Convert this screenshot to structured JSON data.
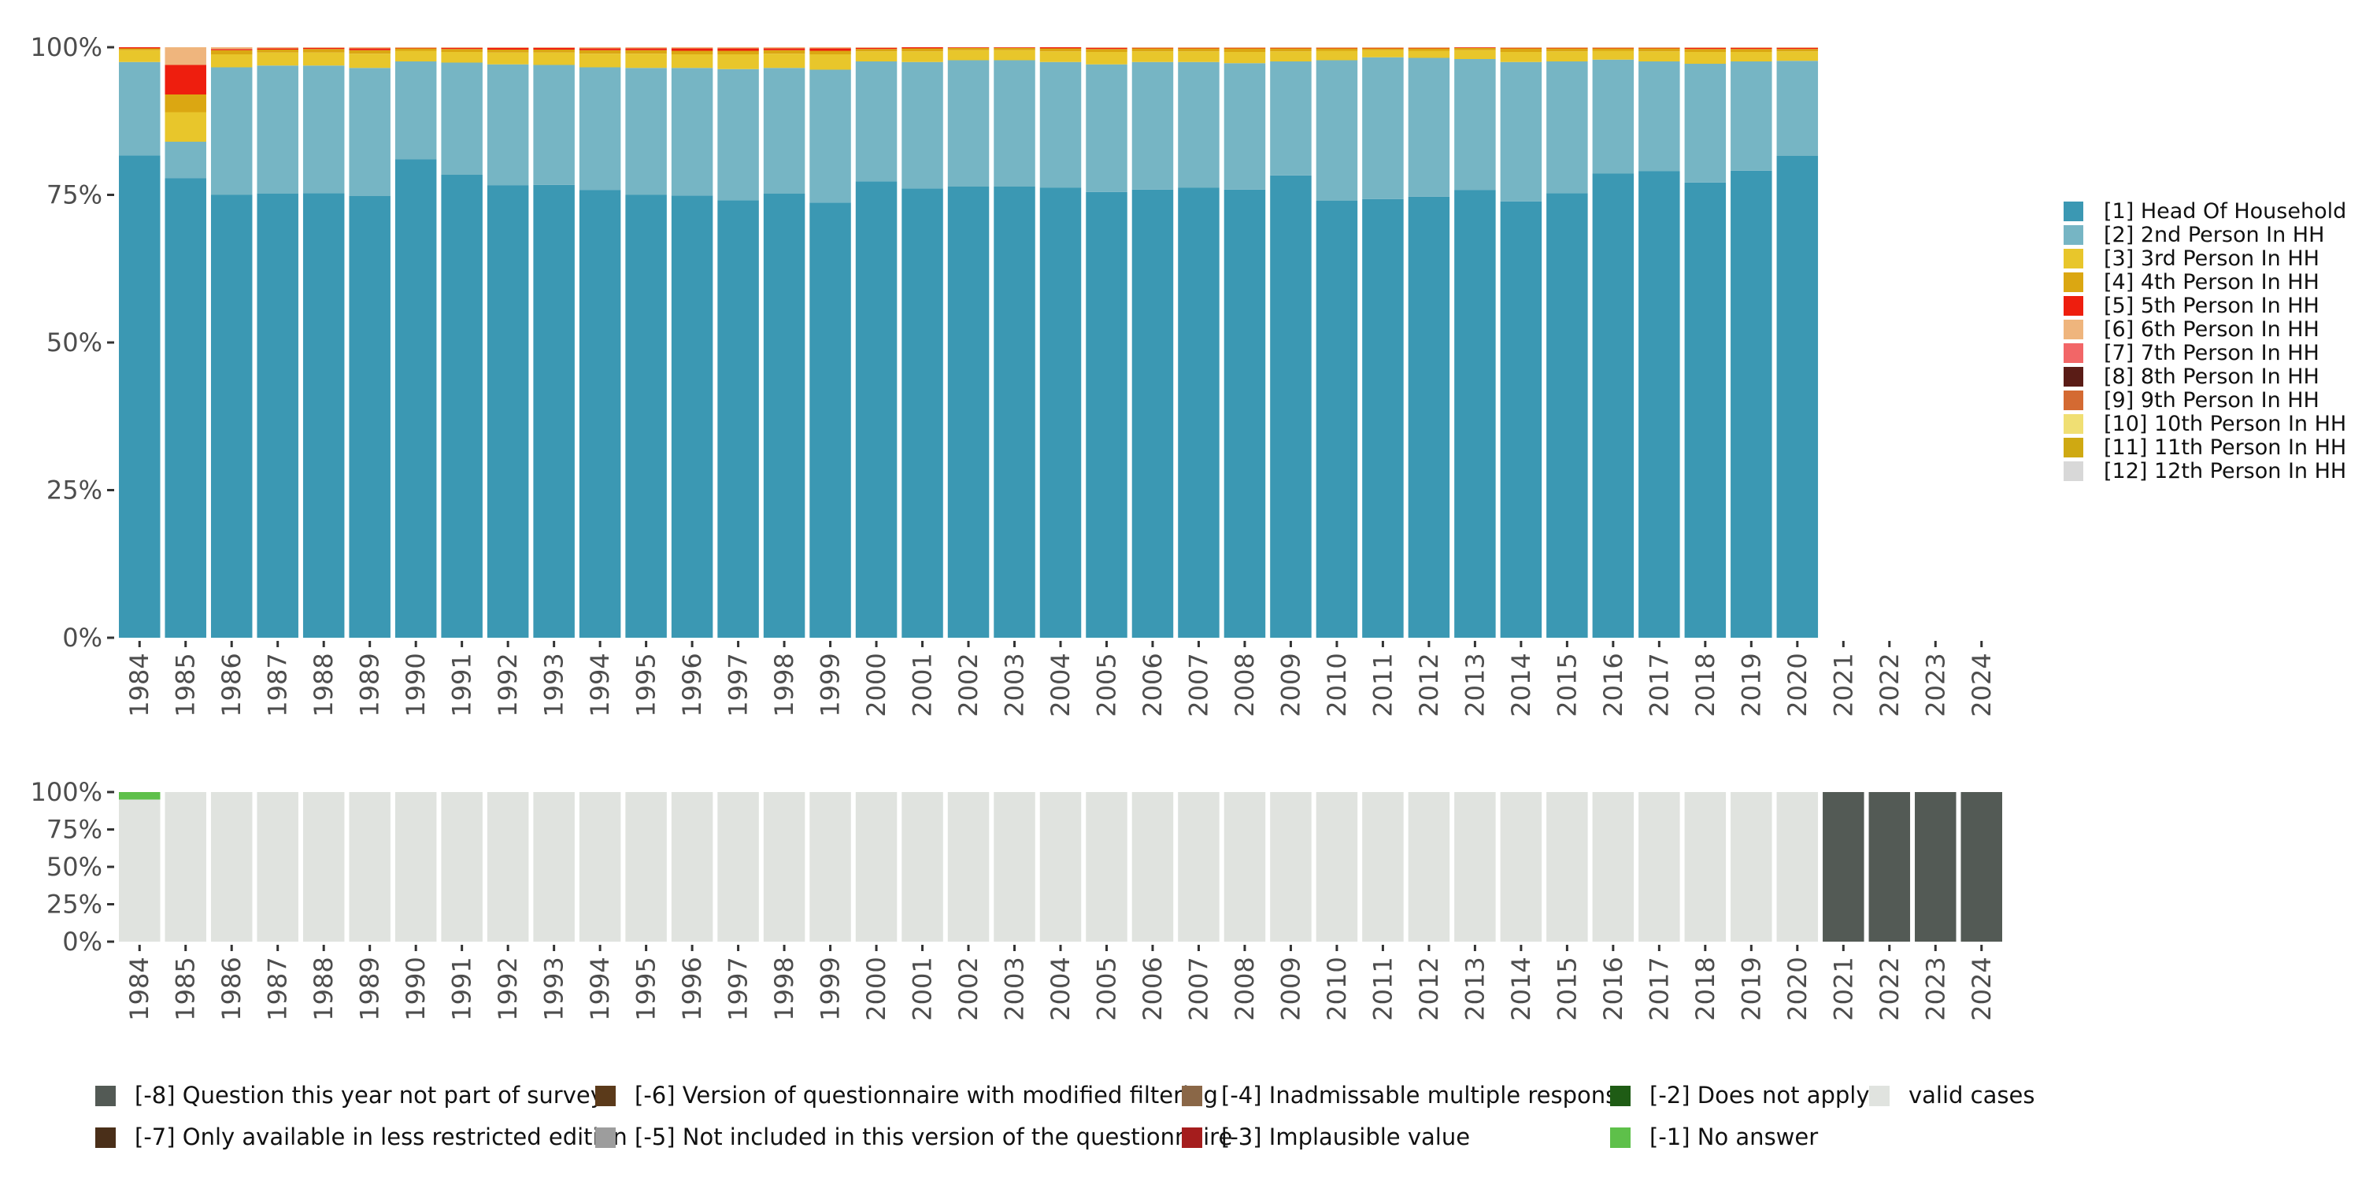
{
  "colors": {
    "series": {
      "[1] Head Of Household": "#3b98b3",
      "[2] 2nd Person In HH": "#76b5c4",
      "[3] 3rd Person In HH": "#e8c62b",
      "[4] 4th Person In HH": "#dba712",
      "[5] 5th Person In HH": "#ee1e0e",
      "[6] 6th Person In HH": "#efb57d",
      "[7] 7th Person In HH": "#f26667",
      "[8] 8th Person In HH": "#5a1c16",
      "[9] 9th Person In HH": "#d46a32",
      "[10] 10th Person In HH": "#f0df73",
      "[11] 11th Person In HH": "#cfa912",
      "[12] 12th Person In HH": "#d8d8d8",
      "[-8] Question this year not part of survey": "#535a55",
      "[-7] Only available in less restricted edition": "#4a2f19",
      "[-6] Version of questionnaire with modified filtering": "#5b3a1a",
      "[-5] Not included in this version of the questionnaire": "#9d9d9d",
      "[-4] Inadmissable multiple response": "#8a6747",
      "[-3] Implausible value": "#a51d1d",
      "[-2] Does not apply": "#1f5c15",
      "[-1] No answer": "#5ec04a",
      "valid cases": "#e0e3df"
    }
  },
  "chart_data": [
    {
      "type": "bar",
      "stacked": true,
      "title": "",
      "xlabel": "",
      "ylabel": "",
      "ylim": [
        0,
        100
      ],
      "y_tick_labels": [
        "0%",
        "25%",
        "50%",
        "75%",
        "100%"
      ],
      "y_ticks": [
        0,
        25,
        50,
        75,
        100
      ],
      "categories": [
        "1984",
        "1985",
        "1986",
        "1987",
        "1988",
        "1989",
        "1990",
        "1991",
        "1992",
        "1993",
        "1994",
        "1995",
        "1996",
        "1997",
        "1998",
        "1999",
        "2000",
        "2001",
        "2002",
        "2003",
        "2004",
        "2005",
        "2006",
        "2007",
        "2008",
        "2009",
        "2010",
        "2011",
        "2012",
        "2013",
        "2014",
        "2015",
        "2016",
        "2017",
        "2018",
        "2019",
        "2020",
        "2021",
        "2022",
        "2023",
        "2024"
      ],
      "legend_position": "right",
      "series": [
        {
          "name": "[1] Head Of Household",
          "values": [
            81.7,
            77.8,
            75,
            75.2,
            75.3,
            74.8,
            81,
            78.4,
            76.6,
            76.7,
            75.8,
            75,
            74.9,
            74.1,
            75.2,
            73.7,
            77.3,
            76.1,
            76.4,
            76.4,
            76.2,
            75.5,
            75.9,
            76.2,
            75.9,
            78.3,
            74,
            74.3,
            74.7,
            75.8,
            73.9,
            75.3,
            78.6,
            79,
            77.1,
            79.1,
            81.6,
            null,
            null,
            null,
            null
          ]
        },
        {
          "name": "[2] 2nd Person In HH",
          "values": [
            15.8,
            6.2,
            21.6,
            21.7,
            21.6,
            21.7,
            16.6,
            19,
            20.5,
            20.3,
            20.8,
            21.5,
            21.6,
            22.2,
            21.3,
            22.5,
            20.3,
            21.4,
            21.4,
            21.4,
            21.3,
            21.6,
            21.6,
            21.3,
            21.4,
            19.3,
            23.8,
            24,
            23.5,
            22.2,
            23.6,
            22.3,
            19.3,
            18.6,
            20.1,
            18.5,
            16.1,
            null,
            null,
            null,
            null
          ]
        },
        {
          "name": "[3] 3rd Person In HH",
          "values": [
            2,
            5,
            2.2,
            2.2,
            2.2,
            2.4,
            1.8,
            1.8,
            2,
            2.1,
            2.3,
            2.4,
            2.3,
            2.5,
            2.4,
            2.6,
            1.7,
            1.8,
            1.7,
            1.7,
            1.8,
            2.1,
            1.8,
            1.8,
            1.9,
            1.7,
            1.6,
            1.2,
            1.2,
            1.5,
            1.7,
            1.7,
            1.5,
            1.7,
            2,
            1.6,
            1.6,
            null,
            null,
            null,
            null
          ]
        },
        {
          "name": "[4] 4th Person In HH",
          "values": [
            0.3,
            3,
            0.7,
            0.5,
            0.6,
            0.6,
            0.4,
            0.5,
            0.5,
            0.5,
            0.6,
            0.6,
            0.6,
            0.6,
            0.6,
            0.6,
            0.4,
            0.5,
            0.4,
            0.4,
            0.5,
            0.5,
            0.5,
            0.5,
            0.6,
            0.5,
            0.4,
            0.3,
            0.4,
            0.4,
            0.6,
            0.5,
            0.4,
            0.5,
            0.5,
            0.5,
            0.4,
            null,
            null,
            null,
            null
          ]
        },
        {
          "name": "[5] 5th Person In HH",
          "values": [
            0.2,
            5,
            0.2,
            0.2,
            0.2,
            0.3,
            0.1,
            0.2,
            0.3,
            0.3,
            0.3,
            0.3,
            0.4,
            0.4,
            0.3,
            0.4,
            0.2,
            0.2,
            0.1,
            0.1,
            0.2,
            0.2,
            0.1,
            0.1,
            0.1,
            0.1,
            0.1,
            0.1,
            0.1,
            0.1,
            0.1,
            0.1,
            0.1,
            0.1,
            0.2,
            0.2,
            0.2,
            null,
            null,
            null,
            null
          ]
        },
        {
          "name": "[6] 6th Person In HH",
          "values": [
            0,
            3,
            0.3,
            0.2,
            0.1,
            0.2,
            0.1,
            0.1,
            0.1,
            0.1,
            0.2,
            0.2,
            0.2,
            0.2,
            0.2,
            0.2,
            0.1,
            0,
            0,
            0,
            0,
            0.1,
            0.1,
            0.1,
            0.1,
            0.1,
            0.1,
            0.1,
            0.1,
            0,
            0.1,
            0.1,
            0.1,
            0.1,
            0.1,
            0.1,
            0.1,
            null,
            null,
            null,
            null
          ]
        },
        {
          "name": "[7] 7th Person In HH",
          "values": [
            0,
            0,
            0,
            0,
            0,
            0,
            0,
            0,
            0,
            0,
            0,
            0,
            0,
            0,
            0,
            0,
            0,
            0,
            0,
            0,
            0,
            0,
            0,
            0,
            0,
            0,
            0,
            0,
            0,
            0,
            0,
            0,
            0,
            0,
            0,
            0,
            0,
            null,
            null,
            null,
            null
          ]
        },
        {
          "name": "[8] 8th Person In HH",
          "values": [
            0,
            0,
            0,
            0,
            0,
            0,
            0,
            0,
            0,
            0,
            0,
            0,
            0,
            0,
            0,
            0,
            0,
            0,
            0,
            0,
            0,
            0,
            0,
            0,
            0,
            0,
            0,
            0,
            0,
            0,
            0,
            0,
            0,
            0,
            0,
            0,
            0,
            null,
            null,
            null,
            null
          ]
        },
        {
          "name": "[9] 9th Person In HH",
          "values": [
            0,
            0,
            0,
            0,
            0,
            0,
            0,
            0,
            0,
            0,
            0,
            0,
            0,
            0,
            0,
            0,
            0,
            0,
            0,
            0,
            0,
            0,
            0,
            0,
            0,
            0,
            0,
            0,
            0,
            0,
            0,
            0,
            0,
            0,
            0,
            0,
            0,
            null,
            null,
            null,
            null
          ]
        },
        {
          "name": "[10] 10th Person In HH",
          "values": [
            0,
            0,
            0,
            0,
            0,
            0,
            0,
            0,
            0,
            0,
            0,
            0,
            0,
            0,
            0,
            0,
            0,
            0,
            0,
            0,
            0,
            0,
            0,
            0,
            0,
            0,
            0,
            0,
            0,
            0,
            0,
            0,
            0,
            0,
            0,
            0,
            0,
            null,
            null,
            null,
            null
          ]
        },
        {
          "name": "[11] 11th Person In HH",
          "values": [
            0,
            0,
            0,
            0,
            0,
            0,
            0,
            0,
            0,
            0,
            0,
            0,
            0,
            0,
            0,
            0,
            0,
            0,
            0,
            0,
            0,
            0,
            0,
            0,
            0,
            0,
            0,
            0,
            0,
            0,
            0,
            0,
            0,
            0,
            0,
            0,
            0,
            null,
            null,
            null,
            null
          ]
        },
        {
          "name": "[12] 12th Person In HH",
          "values": [
            0,
            0,
            0,
            0,
            0,
            0,
            0,
            0,
            0,
            0,
            0,
            0,
            0,
            0,
            0,
            0,
            0,
            0,
            0,
            0,
            0,
            0,
            0,
            0,
            0,
            0,
            0,
            0,
            0,
            0,
            0,
            0,
            0,
            0,
            0,
            0,
            0,
            null,
            null,
            null,
            null
          ]
        }
      ]
    },
    {
      "type": "bar",
      "stacked": true,
      "title": "",
      "xlabel": "",
      "ylabel": "",
      "ylim": [
        0,
        100
      ],
      "y_tick_labels": [
        "0%",
        "25%",
        "50%",
        "75%",
        "100%"
      ],
      "y_ticks": [
        0,
        25,
        50,
        75,
        100
      ],
      "categories": [
        "1984",
        "1985",
        "1986",
        "1987",
        "1988",
        "1989",
        "1990",
        "1991",
        "1992",
        "1993",
        "1994",
        "1995",
        "1996",
        "1997",
        "1998",
        "1999",
        "2000",
        "2001",
        "2002",
        "2003",
        "2004",
        "2005",
        "2006",
        "2007",
        "2008",
        "2009",
        "2010",
        "2011",
        "2012",
        "2013",
        "2014",
        "2015",
        "2016",
        "2017",
        "2018",
        "2019",
        "2020",
        "2021",
        "2022",
        "2023",
        "2024"
      ],
      "legend_position": "bottom",
      "legend_order": [
        "[-8] Question this year not part of survey",
        "[-6] Version of questionnaire with modified filtering",
        "[-4] Inadmissable multiple response",
        "[-2] Does not apply",
        "valid cases",
        "[-7] Only available in less restricted edition",
        "[-5] Not included in this version of the questionnaire",
        "[-3] Implausible value",
        "[-1] No answer"
      ],
      "series": [
        {
          "name": "valid cases",
          "values": [
            95,
            100,
            100,
            100,
            100,
            100,
            100,
            100,
            100,
            100,
            100,
            100,
            100,
            100,
            100,
            100,
            100,
            100,
            100,
            100,
            100,
            100,
            100,
            100,
            100,
            100,
            100,
            100,
            100,
            100,
            100,
            100,
            100,
            100,
            100,
            100,
            100,
            0,
            0,
            0,
            0
          ]
        },
        {
          "name": "[-1] No answer",
          "values": [
            5,
            0,
            0,
            0,
            0,
            0,
            0,
            0,
            0,
            0,
            0,
            0,
            0,
            0,
            0,
            0,
            0,
            0,
            0,
            0,
            0,
            0,
            0,
            0,
            0,
            0,
            0,
            0,
            0,
            0,
            0,
            0,
            0,
            0,
            0,
            0,
            0,
            0,
            0,
            0,
            0
          ]
        },
        {
          "name": "[-2] Does not apply",
          "values": [
            0,
            0,
            0,
            0,
            0,
            0,
            0,
            0,
            0,
            0,
            0,
            0,
            0,
            0,
            0,
            0,
            0,
            0,
            0,
            0,
            0,
            0,
            0,
            0,
            0,
            0,
            0,
            0,
            0,
            0,
            0,
            0,
            0,
            0,
            0,
            0,
            0,
            0,
            0,
            0,
            0
          ]
        },
        {
          "name": "[-3] Implausible value",
          "values": [
            0,
            0,
            0,
            0,
            0,
            0,
            0,
            0,
            0,
            0,
            0,
            0,
            0,
            0,
            0,
            0,
            0,
            0,
            0,
            0,
            0,
            0,
            0,
            0,
            0,
            0,
            0,
            0,
            0,
            0,
            0,
            0,
            0,
            0,
            0,
            0,
            0,
            0,
            0,
            0,
            0
          ]
        },
        {
          "name": "[-4] Inadmissable multiple response",
          "values": [
            0,
            0,
            0,
            0,
            0,
            0,
            0,
            0,
            0,
            0,
            0,
            0,
            0,
            0,
            0,
            0,
            0,
            0,
            0,
            0,
            0,
            0,
            0,
            0,
            0,
            0,
            0,
            0,
            0,
            0,
            0,
            0,
            0,
            0,
            0,
            0,
            0,
            0,
            0,
            0,
            0
          ]
        },
        {
          "name": "[-5] Not included in this version of the questionnaire",
          "values": [
            0,
            0,
            0,
            0,
            0,
            0,
            0,
            0,
            0,
            0,
            0,
            0,
            0,
            0,
            0,
            0,
            0,
            0,
            0,
            0,
            0,
            0,
            0,
            0,
            0,
            0,
            0,
            0,
            0,
            0,
            0,
            0,
            0,
            0,
            0,
            0,
            0,
            0,
            0,
            0,
            0
          ]
        },
        {
          "name": "[-6] Version of questionnaire with modified filtering",
          "values": [
            0,
            0,
            0,
            0,
            0,
            0,
            0,
            0,
            0,
            0,
            0,
            0,
            0,
            0,
            0,
            0,
            0,
            0,
            0,
            0,
            0,
            0,
            0,
            0,
            0,
            0,
            0,
            0,
            0,
            0,
            0,
            0,
            0,
            0,
            0,
            0,
            0,
            0,
            0,
            0,
            0
          ]
        },
        {
          "name": "[-7] Only available in less restricted edition",
          "values": [
            0,
            0,
            0,
            0,
            0,
            0,
            0,
            0,
            0,
            0,
            0,
            0,
            0,
            0,
            0,
            0,
            0,
            0,
            0,
            0,
            0,
            0,
            0,
            0,
            0,
            0,
            0,
            0,
            0,
            0,
            0,
            0,
            0,
            0,
            0,
            0,
            0,
            0,
            0,
            0,
            0
          ]
        },
        {
          "name": "[-8] Question this year not part of survey",
          "values": [
            0,
            0,
            0,
            0,
            0,
            0,
            0,
            0,
            0,
            0,
            0,
            0,
            0,
            0,
            0,
            0,
            0,
            0,
            0,
            0,
            0,
            0,
            0,
            0,
            0,
            0,
            0,
            0,
            0,
            0,
            0,
            0,
            0,
            0,
            0,
            0,
            0,
            100,
            100,
            100,
            100
          ]
        }
      ]
    }
  ]
}
